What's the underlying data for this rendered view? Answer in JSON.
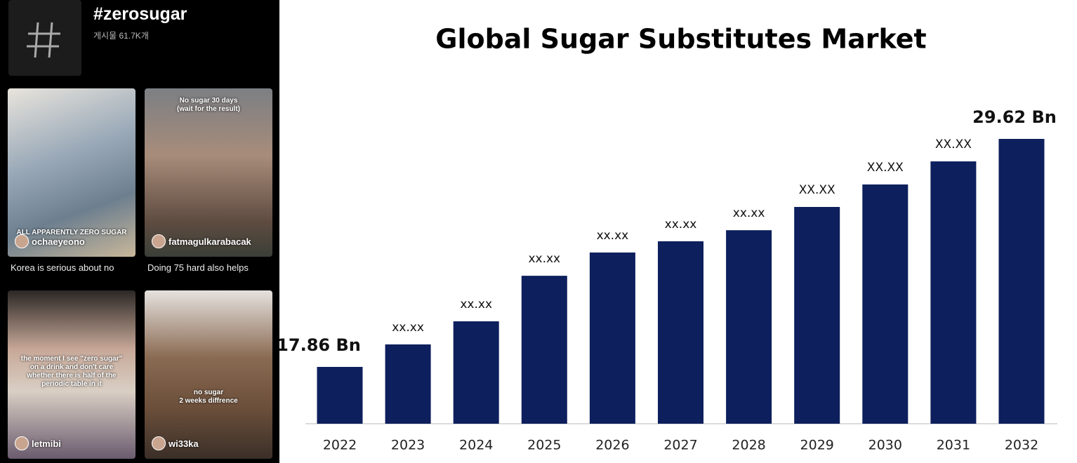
{
  "feed": {
    "hashtag": "#zerosugar",
    "post_count": "게시물 61.7K개",
    "posts": [
      {
        "overlay": [
          "ALL APPARENTLY ZERO SUGAR"
        ],
        "user": "ochaeyeono",
        "caption": "Korea is serious about no"
      },
      {
        "overlay": [
          "No sugar 30 days",
          "(wait for the result)"
        ],
        "user": "fatmagulkarabacak",
        "caption": "Doing 75 hard also helps"
      },
      {
        "overlay": [
          "the moment I see \"zero sugar\"",
          "on a drink and don't care",
          "whether there is half of the",
          "periodic table in it"
        ],
        "user": "letmibi",
        "caption": null
      },
      {
        "overlay": [
          "no sugar",
          "2 weeks diffrence"
        ],
        "user": "wi33ka",
        "caption": null
      }
    ]
  },
  "chart_data": {
    "type": "bar",
    "title": "Global Sugar Substitutes Market",
    "categories": [
      "2022",
      "2023",
      "2024",
      "2025",
      "2026",
      "2027",
      "2028",
      "2029",
      "2030",
      "2031",
      "2032"
    ],
    "values": [
      17.86,
      19.02,
      20.21,
      22.56,
      23.76,
      24.34,
      24.91,
      26.11,
      27.27,
      28.46,
      29.62
    ],
    "value_labels": [
      "17.86 Bn",
      "xx.xx",
      "xx.xx",
      "xx.xx",
      "xx.xx",
      "xx.xx",
      "xx.xx",
      "XX.XX",
      "XX.XX",
      "XX.XX",
      "29.62 Bn"
    ],
    "color": "#0d1f5c"
  }
}
